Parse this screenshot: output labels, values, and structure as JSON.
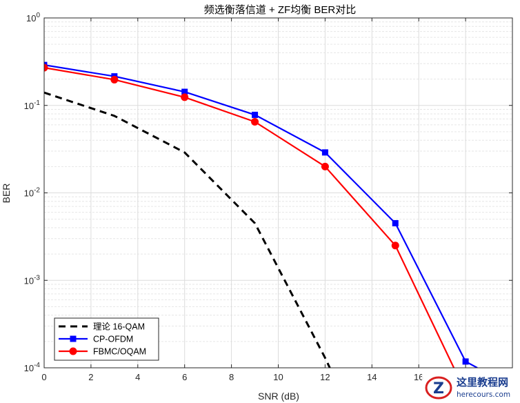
{
  "chart_data": {
    "type": "line",
    "title": "频选衡落信道 + ZF均衡 BER对比",
    "xlabel": "SNR (dB)",
    "ylabel": "BER",
    "xlim": [
      0,
      20
    ],
    "ylim_log10": [
      -4,
      0
    ],
    "yscale": "log",
    "xticks": [
      0,
      2,
      4,
      6,
      8,
      10,
      12,
      14,
      16
    ],
    "yticks_exp": [
      0,
      -1,
      -2,
      -3,
      -4
    ],
    "ytick_base": "10",
    "grid": true,
    "legend_position": "bottom-left",
    "series": [
      {
        "name": "理论 16-QAM",
        "style": "dashed",
        "color": "#000000",
        "marker": "none",
        "x": [
          0,
          3,
          6,
          9,
          12,
          12.2
        ],
        "y": [
          0.14,
          0.076,
          0.029,
          0.0045,
          0.00013,
          0.0001
        ]
      },
      {
        "name": "CP-OFDM",
        "style": "solid",
        "color": "#0000ff",
        "marker": "square",
        "x": [
          0,
          3,
          6,
          9,
          12,
          15,
          18,
          18.5
        ],
        "y": [
          0.29,
          0.215,
          0.143,
          0.078,
          0.029,
          0.0045,
          0.000118,
          0.0001
        ]
      },
      {
        "name": "FBMC/OQAM",
        "style": "solid",
        "color": "#ff0000",
        "marker": "circle",
        "x": [
          0,
          3,
          6,
          9,
          12,
          15,
          17.5
        ],
        "y": [
          0.27,
          0.197,
          0.124,
          0.065,
          0.02,
          0.0025,
          0.0001
        ]
      }
    ]
  },
  "watermark": {
    "site_name": "这里教程网",
    "site_url": "herecours.com",
    "logo_letter": "Z"
  }
}
